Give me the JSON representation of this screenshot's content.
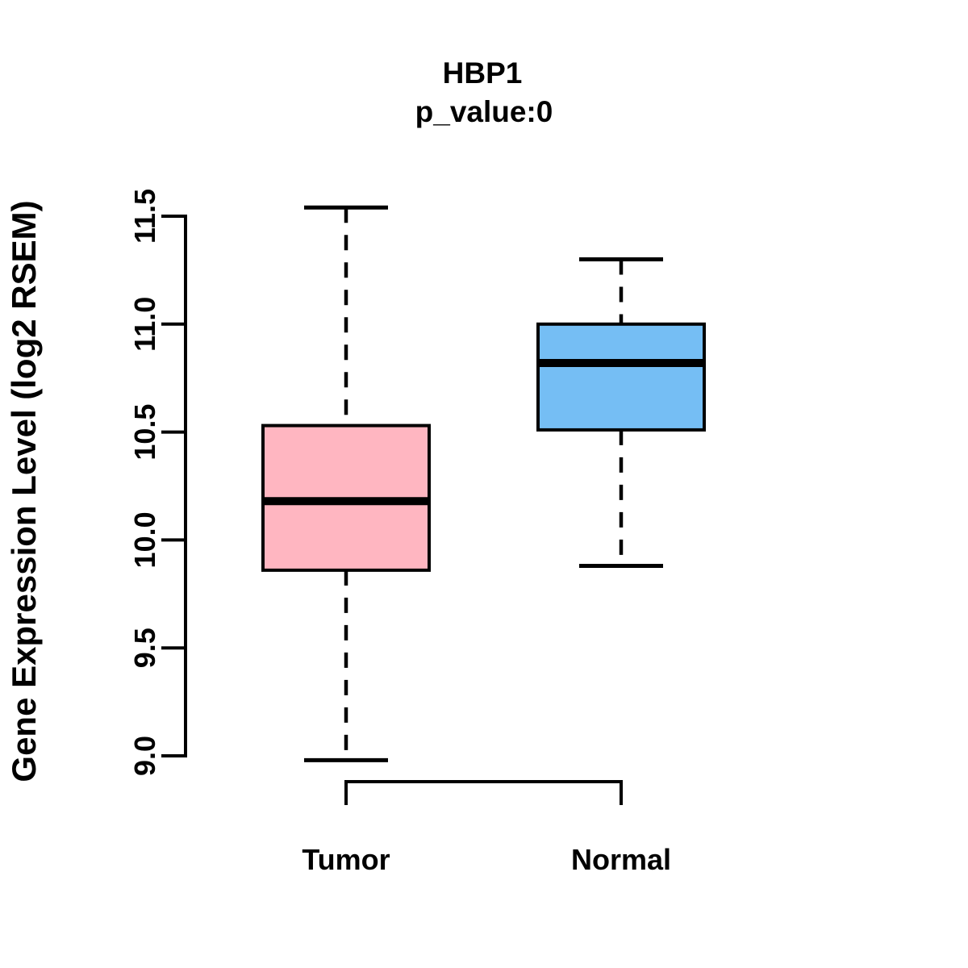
{
  "figure": {
    "background": "#FFFFFF"
  },
  "chart_data": {
    "type": "boxplot",
    "title": "HBP1",
    "subtitle": "p_value:0",
    "ylabel": "Gene Expression Level (log2 RSEM)",
    "xlabel": "",
    "categories": [
      "Tumor",
      "Normal"
    ],
    "series": [
      {
        "name": "Tumor",
        "fill": "#FFB6C1",
        "min": 8.98,
        "q1": 9.86,
        "median": 10.18,
        "q3": 10.53,
        "max": 11.54
      },
      {
        "name": "Normal",
        "fill": "#75BEF4",
        "min": 9.88,
        "q1": 10.51,
        "median": 10.82,
        "q3": 11.0,
        "max": 11.3
      }
    ],
    "yticks": [
      9.0,
      9.5,
      10.0,
      10.5,
      11.0,
      11.5
    ],
    "ylim": [
      9.0,
      11.5
    ],
    "grid": false,
    "legend": "none",
    "stroke_color": "#000000",
    "whisker_style": "dashed"
  }
}
